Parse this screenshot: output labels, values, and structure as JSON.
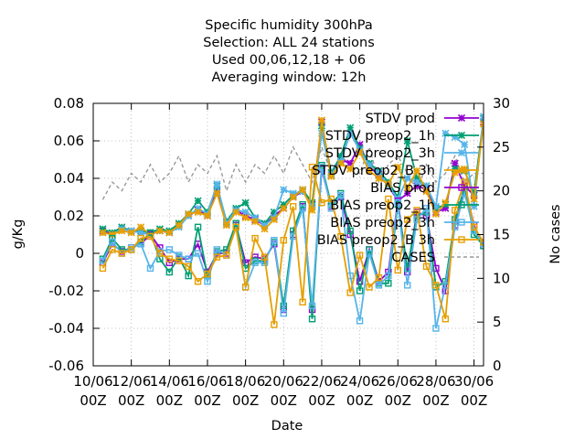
{
  "chart_data": {
    "type": "line",
    "title_lines": [
      "Specific humidity 300hPa",
      "Selection: ALL     24 stations",
      "Used  00,06,12,18 + 06",
      "Averaging window: 12h"
    ],
    "xlabel": "Date",
    "ylabel": "g/Kg",
    "y2label": "No cases",
    "ylim": [
      -0.06,
      0.08
    ],
    "y2lim": [
      0,
      30
    ],
    "xlim": [
      0,
      20.5
    ],
    "y_ticks": [
      -0.06,
      -0.04,
      -0.02,
      0,
      0.02,
      0.04,
      0.06,
      0.08
    ],
    "y_tick_labels": [
      "-0.06",
      "-0.04",
      "-0.02",
      "0",
      "0.02",
      "0.04",
      "0.06",
      "0.08"
    ],
    "y2_ticks": [
      0,
      5,
      10,
      15,
      20,
      25,
      30
    ],
    "y2_tick_labels": [
      "0",
      "5",
      "10",
      "15",
      "20",
      "25",
      "30"
    ],
    "x_ticks": [
      0,
      2,
      4,
      6,
      8,
      10,
      12,
      14,
      16,
      18,
      20
    ],
    "x_tick_labels": [
      [
        "10/06",
        "00Z"
      ],
      [
        "12/06",
        "00Z"
      ],
      [
        "14/06",
        "00Z"
      ],
      [
        "16/06",
        "00Z"
      ],
      [
        "18/06",
        "00Z"
      ],
      [
        "20/06",
        "00Z"
      ],
      [
        "22/06",
        "00Z"
      ],
      [
        "24/06",
        "00Z"
      ],
      [
        "26/06",
        "00Z"
      ],
      [
        "28/06",
        "00Z"
      ],
      [
        "30/06",
        "00Z"
      ]
    ],
    "x_unit_note": "x values are days since 10/06 00Z",
    "x": [
      0.5,
      1,
      1.5,
      2,
      2.5,
      3,
      3.5,
      4,
      4.5,
      5,
      5.5,
      6,
      6.5,
      7,
      7.5,
      8,
      8.5,
      9,
      9.5,
      10,
      10.5,
      11,
      11.5,
      12,
      12.5,
      13,
      13.5,
      14,
      14.5,
      15,
      15.5,
      16,
      16.5,
      17,
      17.5,
      18,
      18.5,
      19,
      19.5,
      20,
      20.5
    ],
    "legend_position": "top-right",
    "grid": true,
    "series": [
      {
        "name": "STDV prod",
        "color": "#9400d3",
        "marker": "star",
        "axis": "y",
        "values": [
          0.012,
          0.01,
          0.013,
          0.012,
          0.011,
          0.01,
          0.012,
          0.011,
          0.015,
          0.02,
          0.023,
          0.02,
          0.034,
          0.016,
          0.023,
          0.02,
          0.018,
          0.015,
          0.02,
          0.024,
          0.03,
          0.033,
          0.026,
          0.07,
          0.042,
          0.05,
          0.048,
          0.058,
          0.046,
          0.042,
          0.036,
          0.028,
          0.032,
          0.036,
          0.034,
          0.022,
          0.024,
          0.048,
          0.036,
          0.031,
          0.07
        ]
      },
      {
        "name": "STDV preop2_1h",
        "color": "#009e73",
        "marker": "star",
        "axis": "y",
        "values": [
          0.013,
          0.011,
          0.014,
          0.012,
          0.012,
          0.011,
          0.013,
          0.012,
          0.016,
          0.021,
          0.028,
          0.022,
          0.036,
          0.017,
          0.024,
          0.027,
          0.019,
          0.016,
          0.022,
          0.026,
          0.031,
          0.034,
          0.027,
          0.068,
          0.043,
          0.052,
          0.067,
          0.056,
          0.048,
          0.044,
          0.038,
          0.03,
          0.06,
          0.04,
          0.036,
          0.024,
          0.026,
          0.045,
          0.044,
          0.032,
          0.072
        ]
      },
      {
        "name": "STDV preop2_3h",
        "color": "#56b4e9",
        "marker": "star",
        "axis": "y",
        "values": [
          0.011,
          0.01,
          0.013,
          0.012,
          0.011,
          0.01,
          0.012,
          0.011,
          0.014,
          0.02,
          0.024,
          0.021,
          0.037,
          0.016,
          0.023,
          0.022,
          0.019,
          0.015,
          0.019,
          0.034,
          0.032,
          0.033,
          0.025,
          0.064,
          0.042,
          0.049,
          0.064,
          0.055,
          0.047,
          0.043,
          0.036,
          0.029,
          0.04,
          0.038,
          0.036,
          0.025,
          0.064,
          0.062,
          0.058,
          0.025,
          0.073
        ]
      },
      {
        "name": "STDV preop2_B 3h",
        "color": "#e69f00",
        "marker": "star",
        "axis": "y",
        "values": [
          0.011,
          0.01,
          0.012,
          0.011,
          0.014,
          0.01,
          0.012,
          0.011,
          0.015,
          0.021,
          0.022,
          0.02,
          0.032,
          0.015,
          0.022,
          0.019,
          0.017,
          0.013,
          0.018,
          0.024,
          0.03,
          0.034,
          0.023,
          0.071,
          0.041,
          0.048,
          0.045,
          0.054,
          0.044,
          0.04,
          0.037,
          0.046,
          0.035,
          0.044,
          0.033,
          0.021,
          0.027,
          0.043,
          0.045,
          0.029,
          0.069
        ]
      },
      {
        "name": "BIAS prod",
        "color": "#9400d3",
        "marker": "square",
        "axis": "y",
        "values": [
          -0.005,
          0.005,
          0.001,
          0.003,
          0.005,
          0.01,
          0.003,
          -0.005,
          -0.003,
          -0.003,
          0.005,
          -0.01,
          0.0,
          0.0,
          0.015,
          -0.005,
          -0.002,
          -0.003,
          0.005,
          -0.03,
          0.01,
          0.025,
          -0.03,
          0.045,
          0.025,
          0.03,
          0.01,
          -0.015,
          0.002,
          -0.015,
          -0.01,
          0.028,
          -0.01,
          0.022,
          0.02,
          -0.008,
          -0.02,
          0.015,
          0.036,
          0.015,
          0.004
        ]
      },
      {
        "name": "BIAS preop2_1h",
        "color": "#009e73",
        "marker": "square",
        "axis": "y",
        "values": [
          -0.003,
          0.008,
          0.002,
          0.002,
          0.006,
          0.011,
          -0.003,
          -0.01,
          -0.002,
          -0.012,
          0.014,
          -0.012,
          0.001,
          0.002,
          0.016,
          -0.008,
          -0.004,
          -0.004,
          0.006,
          -0.028,
          0.012,
          0.026,
          -0.035,
          0.047,
          0.026,
          0.032,
          0.012,
          -0.02,
          0.002,
          -0.016,
          -0.016,
          0.026,
          -0.008,
          0.02,
          0.022,
          -0.018,
          -0.015,
          0.018,
          0.035,
          0.01,
          0.004
        ]
      },
      {
        "name": "BIAS preop2_3h",
        "color": "#56b4e9",
        "marker": "square",
        "axis": "y",
        "values": [
          -0.004,
          0.006,
          0.0,
          0.003,
          0.005,
          -0.008,
          0.001,
          0.002,
          -0.001,
          -0.003,
          0.0,
          -0.015,
          0.002,
          -0.001,
          0.014,
          -0.018,
          -0.005,
          -0.005,
          0.007,
          -0.032,
          0.009,
          0.024,
          -0.028,
          0.046,
          0.024,
          0.031,
          -0.012,
          -0.036,
          0.0,
          -0.017,
          -0.012,
          0.027,
          -0.017,
          0.018,
          0.024,
          -0.04,
          -0.017,
          0.014,
          0.032,
          0.012,
          0.005
        ]
      },
      {
        "name": "BIAS preop2_B 3h",
        "color": "#e69f00",
        "marker": "square",
        "axis": "y",
        "values": [
          -0.008,
          0.002,
          0.0,
          0.002,
          0.008,
          0.009,
          0.0,
          -0.003,
          -0.004,
          -0.007,
          -0.015,
          -0.011,
          -0.002,
          -0.001,
          0.014,
          -0.018,
          0.008,
          -0.002,
          -0.038,
          0.007,
          0.025,
          -0.026,
          0.046,
          0.027,
          0.029,
          0.009,
          -0.021,
          -0.001,
          -0.018,
          -0.013,
          0.029,
          -0.009,
          0.018,
          0.023,
          -0.007,
          -0.017,
          -0.035,
          0.023,
          0.038,
          0.014,
          0.006
        ]
      },
      {
        "name": "CASES",
        "color": "#999999",
        "marker": "none",
        "axis": "y2",
        "dashed": true,
        "values": [
          19,
          21,
          20,
          22,
          21,
          23,
          21,
          22,
          24,
          21,
          23,
          22,
          24,
          20,
          23,
          21,
          23,
          22,
          24,
          22,
          25,
          23,
          21,
          25,
          22,
          24,
          23,
          22,
          25,
          21,
          23,
          24,
          22,
          20,
          23,
          21,
          22,
          24,
          21,
          22,
          22
        ]
      }
    ]
  }
}
